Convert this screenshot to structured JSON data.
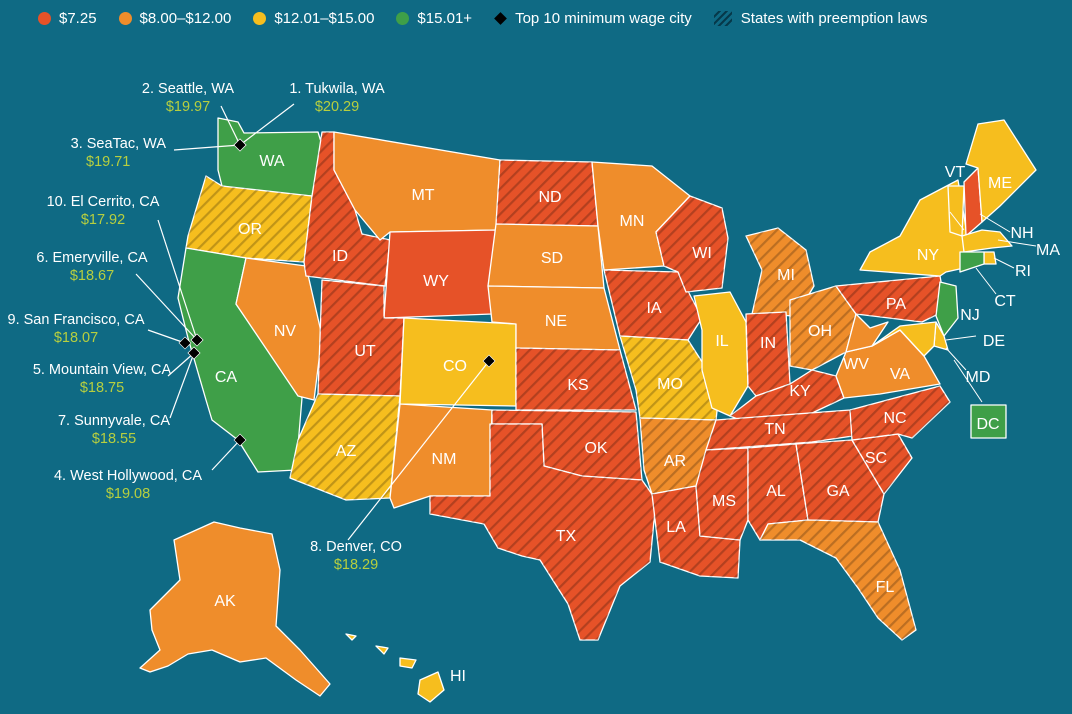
{
  "colors": {
    "background": "#0f6a84",
    "federal": "#e65228",
    "mid": "#ef8d2b",
    "high": "#f6be1e",
    "top": "#3f9f48",
    "marker": "#000000",
    "city_label": "#ffffff",
    "wage_label": "#b7cf3f"
  },
  "legend": {
    "items": [
      {
        "label": "$7.25",
        "color": "#e65228",
        "kind": "swatch"
      },
      {
        "label": "$8.00–$12.00",
        "color": "#ef8d2b",
        "kind": "swatch"
      },
      {
        "label": "$12.01–$15.00",
        "color": "#f6be1e",
        "kind": "swatch"
      },
      {
        "label": "$15.01+",
        "color": "#3f9f48",
        "kind": "swatch"
      },
      {
        "label": "Top 10 minimum wage city",
        "color": "#000000",
        "kind": "diamond"
      },
      {
        "label": "States with preemption laws",
        "color": "#06394a",
        "kind": "hatch"
      }
    ]
  },
  "states": [
    {
      "abbr": "WA",
      "tier": "top",
      "preemption": false
    },
    {
      "abbr": "OR",
      "tier": "high",
      "preemption": true
    },
    {
      "abbr": "CA",
      "tier": "top",
      "preemption": false
    },
    {
      "abbr": "NV",
      "tier": "mid",
      "preemption": false
    },
    {
      "abbr": "ID",
      "tier": "federal",
      "preemption": true
    },
    {
      "abbr": "MT",
      "tier": "mid",
      "preemption": false
    },
    {
      "abbr": "WY",
      "tier": "federal",
      "preemption": false
    },
    {
      "abbr": "UT",
      "tier": "federal",
      "preemption": true
    },
    {
      "abbr": "AZ",
      "tier": "high",
      "preemption": true
    },
    {
      "abbr": "CO",
      "tier": "high",
      "preemption": false
    },
    {
      "abbr": "NM",
      "tier": "mid",
      "preemption": false
    },
    {
      "abbr": "ND",
      "tier": "federal",
      "preemption": true
    },
    {
      "abbr": "SD",
      "tier": "mid",
      "preemption": false
    },
    {
      "abbr": "NE",
      "tier": "mid",
      "preemption": false
    },
    {
      "abbr": "KS",
      "tier": "federal",
      "preemption": true
    },
    {
      "abbr": "OK",
      "tier": "federal",
      "preemption": true
    },
    {
      "abbr": "TX",
      "tier": "federal",
      "preemption": true
    },
    {
      "abbr": "MN",
      "tier": "mid",
      "preemption": false
    },
    {
      "abbr": "IA",
      "tier": "federal",
      "preemption": true
    },
    {
      "abbr": "MO",
      "tier": "high",
      "preemption": true
    },
    {
      "abbr": "AR",
      "tier": "mid",
      "preemption": true
    },
    {
      "abbr": "LA",
      "tier": "federal",
      "preemption": true
    },
    {
      "abbr": "WI",
      "tier": "federal",
      "preemption": true
    },
    {
      "abbr": "IL",
      "tier": "high",
      "preemption": false
    },
    {
      "abbr": "MI",
      "tier": "mid",
      "preemption": true
    },
    {
      "abbr": "IN",
      "tier": "federal",
      "preemption": true
    },
    {
      "abbr": "OH",
      "tier": "mid",
      "preemption": true
    },
    {
      "abbr": "KY",
      "tier": "federal",
      "preemption": true
    },
    {
      "abbr": "TN",
      "tier": "federal",
      "preemption": true
    },
    {
      "abbr": "MS",
      "tier": "federal",
      "preemption": true
    },
    {
      "abbr": "AL",
      "tier": "federal",
      "preemption": true
    },
    {
      "abbr": "GA",
      "tier": "federal",
      "preemption": true
    },
    {
      "abbr": "FL",
      "tier": "mid",
      "preemption": true
    },
    {
      "abbr": "SC",
      "tier": "federal",
      "preemption": true
    },
    {
      "abbr": "NC",
      "tier": "federal",
      "preemption": true
    },
    {
      "abbr": "VA",
      "tier": "mid",
      "preemption": false
    },
    {
      "abbr": "WV",
      "tier": "mid",
      "preemption": false
    },
    {
      "abbr": "PA",
      "tier": "federal",
      "preemption": true
    },
    {
      "abbr": "NY",
      "tier": "high",
      "preemption": false
    },
    {
      "abbr": "VT",
      "tier": "high",
      "preemption": false
    },
    {
      "abbr": "NH",
      "tier": "federal",
      "preemption": false
    },
    {
      "abbr": "ME",
      "tier": "high",
      "preemption": false
    },
    {
      "abbr": "MA",
      "tier": "high",
      "preemption": false
    },
    {
      "abbr": "RI",
      "tier": "high",
      "preemption": false
    },
    {
      "abbr": "CT",
      "tier": "top",
      "preemption": false
    },
    {
      "abbr": "NJ",
      "tier": "top",
      "preemption": false
    },
    {
      "abbr": "DE",
      "tier": "high",
      "preemption": false
    },
    {
      "abbr": "MD",
      "tier": "high",
      "preemption": false
    },
    {
      "abbr": "DC",
      "tier": "top",
      "preemption": false
    },
    {
      "abbr": "AK",
      "tier": "mid",
      "preemption": false
    },
    {
      "abbr": "HI",
      "tier": "high",
      "preemption": false
    }
  ],
  "cities": [
    {
      "rank": 1,
      "label": "1. Tukwila, WA",
      "wage": "$20.29"
    },
    {
      "rank": 2,
      "label": "2. Seattle, WA",
      "wage": "$19.97"
    },
    {
      "rank": 3,
      "label": "3. SeaTac, WA",
      "wage": "$19.71"
    },
    {
      "rank": 4,
      "label": "4. West Hollywood, CA",
      "wage": "$19.08"
    },
    {
      "rank": 5,
      "label": "5. Mountain View, CA",
      "wage": "$18.75"
    },
    {
      "rank": 6,
      "label": "6. Emeryville, CA",
      "wage": "$18.67"
    },
    {
      "rank": 7,
      "label": "7. Sunnyvale, CA",
      "wage": "$18.55"
    },
    {
      "rank": 8,
      "label": "8. Denver, CO",
      "wage": "$18.29"
    },
    {
      "rank": 9,
      "label": "9. San Francisco, CA",
      "wage": "$18.07"
    },
    {
      "rank": 10,
      "label": "10. El Cerrito, CA",
      "wage": "$17.92"
    }
  ]
}
